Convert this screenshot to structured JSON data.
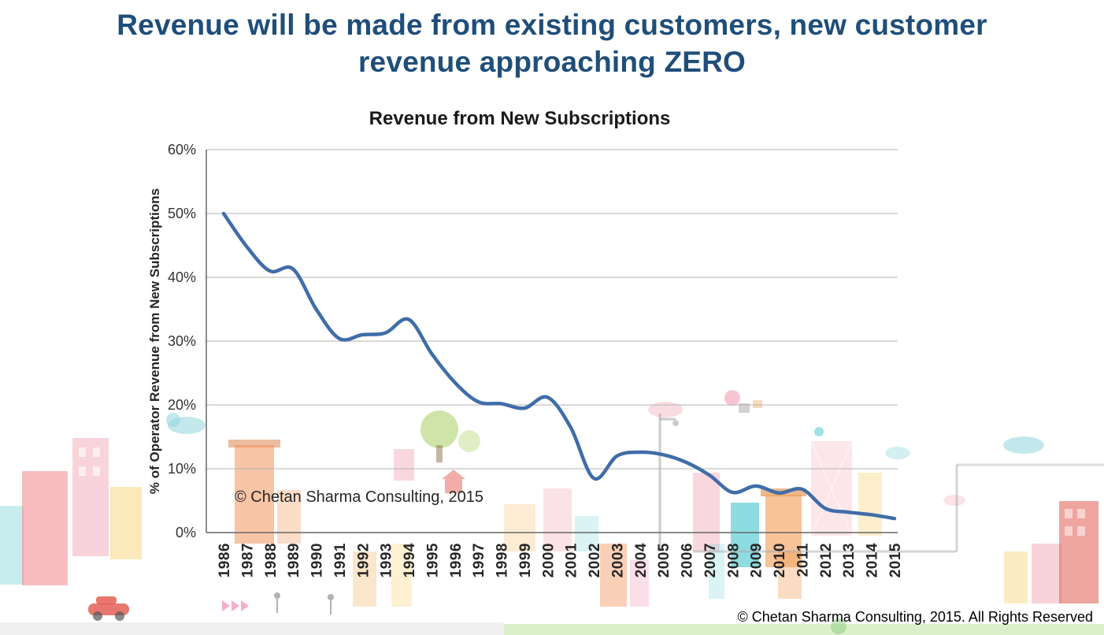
{
  "page": {
    "title_line1": "Revenue will be made from existing customers, new customer",
    "title_line2": "revenue approaching ZERO",
    "title_color": "#1F4E79",
    "footer": "© Chetan Sharma Consulting, 2015. All Rights Reserved"
  },
  "chart_data": {
    "type": "line",
    "title": "Revenue from New Subscriptions",
    "xlabel": "",
    "ylabel": "% of Operator Revenue from New Subscriptions",
    "annotation": "© Chetan Sharma Consulting, 2015",
    "categories": [
      1986,
      1987,
      1988,
      1989,
      1990,
      1991,
      1992,
      1993,
      1994,
      1995,
      1996,
      1997,
      1998,
      1999,
      2000,
      2001,
      2002,
      2003,
      2004,
      2005,
      2006,
      2007,
      2008,
      2009,
      2010,
      2011,
      2012,
      2013,
      2014,
      2015
    ],
    "values": [
      50,
      44.8,
      41,
      41.3,
      35,
      30.4,
      31,
      31.3,
      33.4,
      28,
      23.5,
      20.5,
      20.2,
      19.5,
      21.2,
      16.5,
      8.5,
      12,
      12.6,
      12.2,
      11,
      9,
      6.3,
      7.3,
      6.2,
      6.8,
      3.8,
      3.2,
      2.8,
      2.2
    ],
    "ylim": [
      0,
      60
    ],
    "ytick_step": 10,
    "ytick_format": "percent",
    "line_color": "#3F6DA8",
    "grid": true,
    "legend": "none"
  }
}
